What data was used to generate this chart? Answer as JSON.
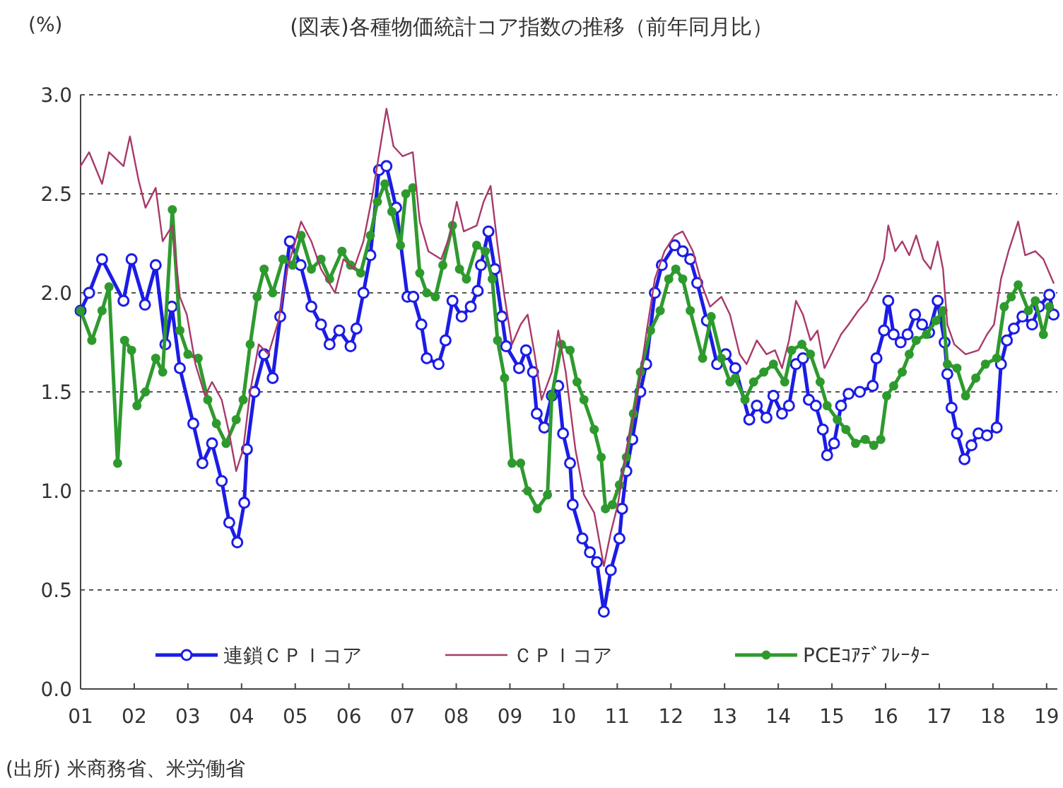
{
  "chart_data": {
    "type": "line",
    "title": "(図表)各種物価統計コア指数の推移（前年同月比）",
    "ylabel": "(%)",
    "annotations": [
      "(出所) 米商務省、米労働省"
    ],
    "xlim": [
      2001,
      2019.2
    ],
    "xticks": [
      {
        "value": 2001,
        "label": "01"
      },
      {
        "value": 2002,
        "label": "02"
      },
      {
        "value": 2003,
        "label": "03"
      },
      {
        "value": 2004,
        "label": "04"
      },
      {
        "value": 2005,
        "label": "05"
      },
      {
        "value": 2006,
        "label": "06"
      },
      {
        "value": 2007,
        "label": "07"
      },
      {
        "value": 2008,
        "label": "08"
      },
      {
        "value": 2009,
        "label": "09"
      },
      {
        "value": 2010,
        "label": "10"
      },
      {
        "value": 2011,
        "label": "11"
      },
      {
        "value": 2012,
        "label": "12"
      },
      {
        "value": 2013,
        "label": "13"
      },
      {
        "value": 2014,
        "label": "14"
      },
      {
        "value": 2015,
        "label": "15"
      },
      {
        "value": 2016,
        "label": "16"
      },
      {
        "value": 2017,
        "label": "17"
      },
      {
        "value": 2018,
        "label": "18"
      },
      {
        "value": 2019,
        "label": "19"
      }
    ],
    "ylim": [
      0,
      3
    ],
    "yticks": [
      {
        "value": 0,
        "label": "0.0"
      },
      {
        "value": 0.5,
        "label": "0.5"
      },
      {
        "value": 1,
        "label": "1.0"
      },
      {
        "value": 1.5,
        "label": "1.5"
      },
      {
        "value": 2,
        "label": "2.0"
      },
      {
        "value": 2.5,
        "label": "2.5"
      },
      {
        "value": 3,
        "label": "3.0"
      }
    ],
    "grid": "y",
    "legend": "bottom",
    "series": [
      {
        "name": "連鎖ＣＰＩコア",
        "color": "#1c1ce6",
        "marker": "circle",
        "x": [
          2001.0,
          2001.16,
          2001.4,
          2001.8,
          2001.95,
          2002.2,
          2002.4,
          2002.58,
          2002.7,
          2002.85,
          2003.1,
          2003.27,
          2003.45,
          2003.63,
          2003.77,
          2003.92,
          2004.05,
          2004.1,
          2004.24,
          2004.42,
          2004.58,
          2004.72,
          2004.9,
          2005.1,
          2005.3,
          2005.48,
          2005.64,
          2005.82,
          2006.03,
          2006.14,
          2006.27,
          2006.4,
          2006.56,
          2006.7,
          2006.88,
          2007.09,
          2007.2,
          2007.35,
          2007.45,
          2007.67,
          2007.8,
          2007.93,
          2008.1,
          2008.27,
          2008.4,
          2008.46,
          2008.6,
          2008.72,
          2008.85,
          2008.93,
          2009.17,
          2009.3,
          2009.43,
          2009.5,
          2009.64,
          2009.78,
          2009.9,
          2009.99,
          2010.12,
          2010.17,
          2010.35,
          2010.49,
          2010.62,
          2010.75,
          2010.88,
          2011.04,
          2011.09,
          2011.17,
          2011.28,
          2011.43,
          2011.54,
          2011.7,
          2011.83,
          2012.07,
          2012.22,
          2012.36,
          2012.49,
          2012.67,
          2012.86,
          2013.02,
          2013.2,
          2013.46,
          2013.6,
          2013.78,
          2013.91,
          2014.07,
          2014.2,
          2014.33,
          2014.46,
          2014.57,
          2014.7,
          2014.83,
          2014.91,
          2015.04,
          2015.17,
          2015.31,
          2015.52,
          2015.76,
          2015.83,
          2015.97,
          2016.05,
          2016.15,
          2016.28,
          2016.41,
          2016.55,
          2016.68,
          2016.81,
          2016.97,
          2017.1,
          2017.15,
          2017.23,
          2017.33,
          2017.47,
          2017.6,
          2017.73,
          2017.89,
          2018.07,
          2018.15,
          2018.26,
          2018.39,
          2018.55,
          2018.73,
          2018.86,
          2019.05,
          2019.13
        ],
        "values": [
          1.91,
          2.0,
          2.17,
          1.96,
          2.17,
          1.94,
          2.14,
          1.74,
          1.93,
          1.62,
          1.34,
          1.14,
          1.24,
          1.05,
          0.84,
          0.74,
          0.94,
          1.21,
          1.5,
          1.69,
          1.57,
          1.88,
          2.26,
          2.14,
          1.93,
          1.84,
          1.74,
          1.81,
          1.73,
          1.82,
          2.0,
          2.19,
          2.62,
          2.64,
          2.43,
          1.98,
          1.98,
          1.84,
          1.67,
          1.64,
          1.76,
          1.96,
          1.88,
          1.93,
          2.01,
          2.14,
          2.31,
          2.12,
          1.88,
          1.73,
          1.62,
          1.71,
          1.6,
          1.39,
          1.32,
          1.48,
          1.53,
          1.29,
          1.14,
          0.93,
          0.76,
          0.69,
          0.64,
          0.39,
          0.6,
          0.76,
          0.91,
          1.1,
          1.26,
          1.5,
          1.64,
          2.0,
          2.14,
          2.24,
          2.21,
          2.17,
          2.05,
          1.86,
          1.64,
          1.69,
          1.62,
          1.36,
          1.43,
          1.37,
          1.48,
          1.39,
          1.43,
          1.64,
          1.67,
          1.46,
          1.43,
          1.31,
          1.18,
          1.24,
          1.43,
          1.49,
          1.5,
          1.53,
          1.67,
          1.81,
          1.96,
          1.79,
          1.75,
          1.79,
          1.89,
          1.84,
          1.8,
          1.96,
          1.75,
          1.59,
          1.42,
          1.29,
          1.16,
          1.23,
          1.29,
          1.28,
          1.32,
          1.64,
          1.76,
          1.82,
          1.88,
          1.84,
          1.93,
          1.99,
          1.89
        ]
      },
      {
        "name": "ＣＰＩコア",
        "color": "#a83a6a",
        "marker": "none",
        "x": [
          2001.0,
          2001.16,
          2001.4,
          2001.53,
          2001.8,
          2001.92,
          2002.08,
          2002.21,
          2002.4,
          2002.53,
          2002.71,
          2002.85,
          2002.98,
          2003.14,
          2003.32,
          2003.45,
          2003.63,
          2003.77,
          2003.9,
          2004.03,
          2004.16,
          2004.32,
          2004.5,
          2004.69,
          2004.85,
          2005.11,
          2005.3,
          2005.48,
          2005.74,
          2005.9,
          2006.09,
          2006.27,
          2006.43,
          2006.7,
          2006.83,
          2007.0,
          2007.19,
          2007.32,
          2007.48,
          2007.72,
          2007.88,
          2008.01,
          2008.14,
          2008.38,
          2008.51,
          2008.64,
          2008.77,
          2008.9,
          2009.04,
          2009.2,
          2009.33,
          2009.46,
          2009.59,
          2009.78,
          2009.9,
          2010.04,
          2010.22,
          2010.38,
          2010.57,
          2010.75,
          2010.88,
          2011.01,
          2011.17,
          2011.36,
          2011.54,
          2011.7,
          2011.88,
          2012.07,
          2012.22,
          2012.41,
          2012.59,
          2012.73,
          2012.94,
          2013.1,
          2013.28,
          2013.41,
          2013.6,
          2013.78,
          2013.94,
          2014.07,
          2014.2,
          2014.33,
          2014.46,
          2014.6,
          2014.73,
          2014.86,
          2014.99,
          2015.17,
          2015.31,
          2015.49,
          2015.65,
          2015.84,
          2015.97,
          2016.05,
          2016.18,
          2016.31,
          2016.44,
          2016.57,
          2016.7,
          2016.84,
          2016.97,
          2017.07,
          2017.15,
          2017.28,
          2017.49,
          2017.73,
          2017.89,
          2018.02,
          2018.15,
          2018.29,
          2018.47,
          2018.6,
          2018.79,
          2018.94,
          2019.13
        ],
        "values": [
          2.64,
          2.71,
          2.55,
          2.71,
          2.64,
          2.79,
          2.57,
          2.43,
          2.53,
          2.26,
          2.34,
          1.98,
          1.89,
          1.64,
          1.48,
          1.55,
          1.46,
          1.29,
          1.1,
          1.21,
          1.5,
          1.74,
          1.69,
          1.86,
          2.12,
          2.36,
          2.26,
          2.12,
          2.0,
          2.17,
          2.12,
          2.26,
          2.48,
          2.93,
          2.74,
          2.69,
          2.71,
          2.36,
          2.21,
          2.17,
          2.29,
          2.46,
          2.31,
          2.34,
          2.46,
          2.54,
          2.24,
          1.98,
          1.74,
          1.84,
          1.89,
          1.69,
          1.46,
          1.6,
          1.81,
          1.6,
          1.21,
          0.98,
          0.89,
          0.62,
          0.79,
          0.93,
          1.21,
          1.46,
          1.79,
          2.07,
          2.21,
          2.29,
          2.31,
          2.21,
          2.03,
          1.93,
          1.98,
          1.89,
          1.69,
          1.64,
          1.76,
          1.69,
          1.71,
          1.62,
          1.76,
          1.96,
          1.89,
          1.76,
          1.81,
          1.62,
          1.69,
          1.79,
          1.84,
          1.91,
          1.96,
          2.07,
          2.17,
          2.34,
          2.21,
          2.26,
          2.19,
          2.29,
          2.17,
          2.12,
          2.26,
          2.12,
          1.84,
          1.74,
          1.69,
          1.71,
          1.79,
          1.84,
          2.07,
          2.21,
          2.36,
          2.19,
          2.21,
          2.17,
          2.05
        ]
      },
      {
        "name": "PCEｺｱﾃﾞﾌﾚｰﾀｰ",
        "color": "#2e9a2e",
        "marker": "circle",
        "x": [
          2001.0,
          2001.21,
          2001.4,
          2001.53,
          2001.69,
          2001.82,
          2001.95,
          2002.05,
          2002.21,
          2002.4,
          2002.53,
          2002.71,
          2002.85,
          2003.0,
          2003.19,
          2003.37,
          2003.53,
          2003.71,
          2003.9,
          2004.03,
          2004.16,
          2004.29,
          2004.42,
          2004.58,
          2004.77,
          2004.95,
          2005.11,
          2005.3,
          2005.48,
          2005.64,
          2005.87,
          2006.03,
          2006.22,
          2006.4,
          2006.53,
          2006.67,
          2006.8,
          2006.96,
          2007.06,
          2007.19,
          2007.32,
          2007.45,
          2007.61,
          2007.75,
          2007.93,
          2008.06,
          2008.19,
          2008.38,
          2008.54,
          2008.67,
          2008.77,
          2008.9,
          2009.04,
          2009.2,
          2009.33,
          2009.51,
          2009.7,
          2009.78,
          2009.96,
          2010.12,
          2010.25,
          2010.38,
          2010.57,
          2010.7,
          2010.78,
          2010.91,
          2011.04,
          2011.17,
          2011.3,
          2011.43,
          2011.62,
          2011.8,
          2011.96,
          2012.09,
          2012.22,
          2012.36,
          2012.59,
          2012.75,
          2012.94,
          2013.1,
          2013.2,
          2013.38,
          2013.54,
          2013.73,
          2013.91,
          2014.12,
          2014.25,
          2014.44,
          2014.6,
          2014.78,
          2014.91,
          2015.1,
          2015.26,
          2015.44,
          2015.62,
          2015.78,
          2015.91,
          2016.02,
          2016.15,
          2016.31,
          2016.44,
          2016.57,
          2016.76,
          2016.94,
          2017.07,
          2017.15,
          2017.33,
          2017.49,
          2017.68,
          2017.86,
          2018.07,
          2018.21,
          2018.34,
          2018.47,
          2018.66,
          2018.79,
          2018.94,
          2019.05
        ],
        "values": [
          1.91,
          1.76,
          1.91,
          2.03,
          1.14,
          1.76,
          1.71,
          1.43,
          1.5,
          1.67,
          1.6,
          2.42,
          1.81,
          1.69,
          1.67,
          1.46,
          1.34,
          1.24,
          1.36,
          1.46,
          1.74,
          1.98,
          2.12,
          2.0,
          2.17,
          2.14,
          2.29,
          2.12,
          2.17,
          2.07,
          2.21,
          2.14,
          2.1,
          2.29,
          2.46,
          2.55,
          2.41,
          2.24,
          2.5,
          2.53,
          2.1,
          2.0,
          1.98,
          2.14,
          2.34,
          2.12,
          2.07,
          2.24,
          2.21,
          2.07,
          1.76,
          1.57,
          1.14,
          1.14,
          1.0,
          0.91,
          0.98,
          1.48,
          1.74,
          1.71,
          1.55,
          1.46,
          1.31,
          1.17,
          0.91,
          0.93,
          1.03,
          1.17,
          1.39,
          1.6,
          1.81,
          1.91,
          2.07,
          2.12,
          2.07,
          1.91,
          1.67,
          1.88,
          1.67,
          1.55,
          1.57,
          1.46,
          1.55,
          1.6,
          1.64,
          1.55,
          1.71,
          1.74,
          1.69,
          1.55,
          1.43,
          1.36,
          1.31,
          1.24,
          1.26,
          1.23,
          1.26,
          1.48,
          1.53,
          1.6,
          1.69,
          1.76,
          1.79,
          1.86,
          1.91,
          1.64,
          1.62,
          1.48,
          1.57,
          1.64,
          1.67,
          1.93,
          1.98,
          2.04,
          1.91,
          1.96,
          1.79,
          1.93
        ]
      }
    ]
  }
}
